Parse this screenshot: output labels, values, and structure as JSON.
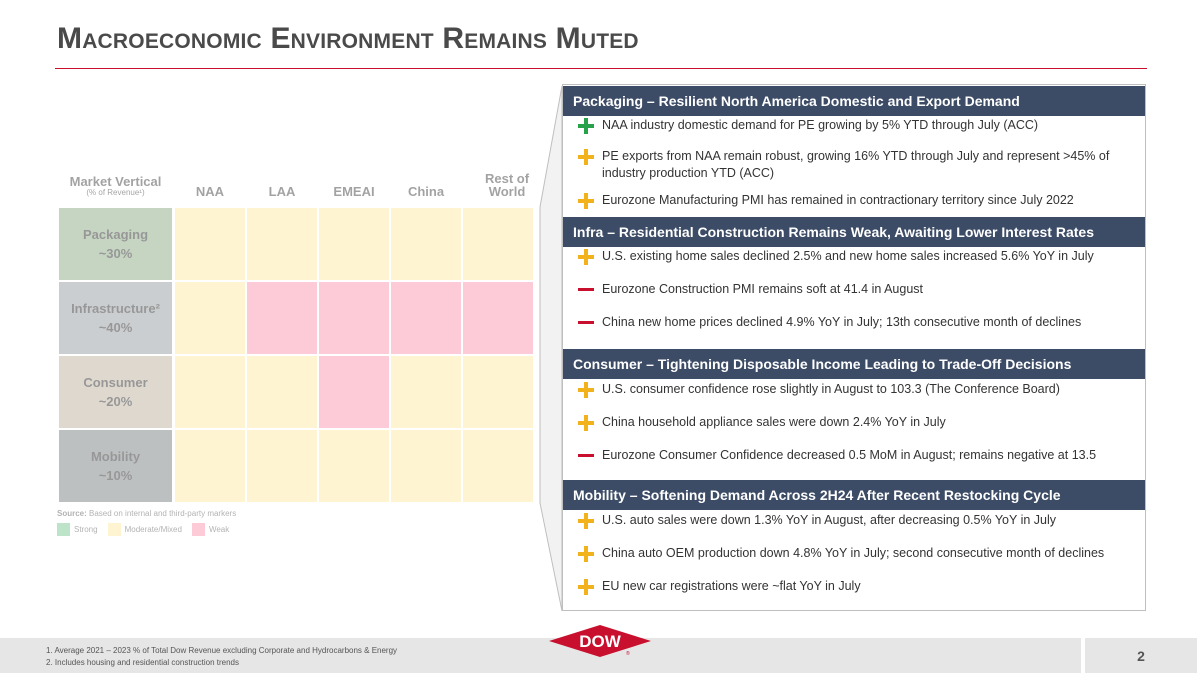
{
  "title": "Macroeconomic Environment Remains Muted",
  "matrix": {
    "header": {
      "vertical": "Market Vertical",
      "vertical_sub": "(% of Revenue¹)",
      "cols": [
        "NAA",
        "LAA",
        "EMEAI",
        "China",
        "Rest of World"
      ]
    },
    "rows": [
      {
        "name": "Packaging",
        "share": "~30%",
        "cells": [
          "moderate",
          "moderate",
          "moderate",
          "moderate",
          "moderate"
        ]
      },
      {
        "name": "Infrastructure²",
        "share": "~40%",
        "cells": [
          "moderate",
          "weak",
          "weak",
          "weak",
          "weak"
        ]
      },
      {
        "name": "Consumer",
        "share": "~20%",
        "cells": [
          "moderate",
          "moderate",
          "weak",
          "moderate",
          "moderate"
        ]
      },
      {
        "name": "Mobility",
        "share": "~10%",
        "cells": [
          "moderate",
          "moderate",
          "moderate",
          "moderate",
          "moderate"
        ]
      }
    ],
    "source_label": "Source:",
    "source_text": " Based on internal and third-party markers",
    "legend": [
      {
        "label": "Strong",
        "color": "#6fc28a"
      },
      {
        "label": "Moderate/Mixed",
        "color": "#fde79a"
      },
      {
        "label": "Weak",
        "color": "#fb8ea7"
      }
    ]
  },
  "sections": [
    {
      "heading": "Packaging – Resilient North America Domestic and Export Demand",
      "bullets": [
        {
          "icon": "plus-green",
          "text": "NAA industry domestic demand for PE growing by 5% YTD through July (ACC)"
        },
        {
          "icon": "plus-yellow",
          "text": "PE exports from NAA remain robust, growing 16% YTD through July and represent >45% of industry production YTD (ACC)"
        },
        {
          "icon": "plus-yellow",
          "text": "Eurozone Manufacturing PMI has remained in contractionary territory since July 2022"
        }
      ]
    },
    {
      "heading": "Infra – Residential Construction Remains Weak, Awaiting Lower Interest Rates",
      "bullets": [
        {
          "icon": "plus-yellow",
          "text": "U.S. existing home sales declined 2.5% and new home sales increased 5.6% YoY in July"
        },
        {
          "icon": "minus-red",
          "text": "Eurozone Construction PMI remains soft at 41.4 in August"
        },
        {
          "icon": "minus-red",
          "text": "China new home prices declined 4.9% YoY in July; 13th consecutive month of declines"
        }
      ]
    },
    {
      "heading": "Consumer – Tightening Disposable Income Leading to Trade-Off Decisions",
      "bullets": [
        {
          "icon": "plus-yellow",
          "text": "U.S. consumer confidence rose slightly in August to 103.3 (The Conference Board)"
        },
        {
          "icon": "plus-yellow",
          "text": "China household appliance sales were down 2.4% YoY in July"
        },
        {
          "icon": "minus-red",
          "text": "Eurozone Consumer Confidence decreased 0.5 MoM in August; remains negative at 13.5"
        }
      ]
    },
    {
      "heading": "Mobility – Softening Demand Across 2H24 After Recent Restocking Cycle",
      "bullets": [
        {
          "icon": "plus-yellow",
          "text": "U.S. auto sales were down 1.3% YoY in August, after decreasing 0.5% YoY in July"
        },
        {
          "icon": "plus-yellow",
          "text": "China auto OEM production down 4.8% YoY in July; second consecutive month of declines"
        },
        {
          "icon": "plus-yellow",
          "text": "EU new car registrations were ~flat YoY in July"
        }
      ]
    }
  ],
  "footnotes": [
    "1. Average 2021 – 2023 % of Total Dow Revenue excluding Corporate and Hydrocarbons & Energy",
    "2. Includes housing and residential construction trends"
  ],
  "logo_text": "DOW",
  "page_number": "2"
}
